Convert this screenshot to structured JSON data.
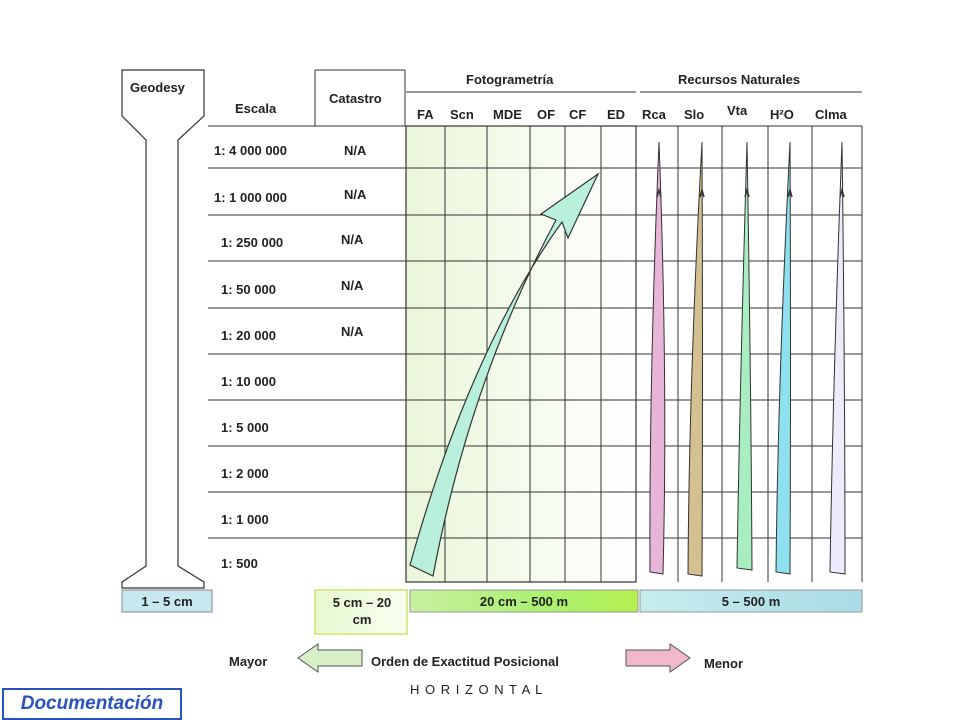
{
  "columns": {
    "geodesy": "Geodesy",
    "escala": "Escala",
    "catastro": "Catastro",
    "fotogrametria": "Fotogrametría",
    "recursos": "Recursos Naturales"
  },
  "foto_cols": [
    "FA",
    "Scn",
    "MDE",
    "OF",
    "CF",
    "ED"
  ],
  "rec_cols": [
    "Rca",
    "Slo",
    "Vta",
    "H²O",
    "Clma"
  ],
  "scales": [
    "1: 4 000 000",
    "1: 1 000 000",
    "1: 250 000",
    "1: 50 000",
    "1: 20 000",
    "1: 10 000",
    "1: 5 000",
    "1: 2 000",
    "1: 1 000",
    "1: 500"
  ],
  "catastro_values": [
    "N/A",
    "N/A",
    "N/A",
    "N/A",
    "N/A"
  ],
  "bottom": {
    "geodesy": "1 – 5 cm",
    "catastro": "5 cm – 20 cm",
    "foto": "20 cm – 500 m",
    "recursos": "5 – 500 m"
  },
  "legend": {
    "mayor": "Mayor",
    "orden": "Orden de Exactitud Posicional",
    "menor": "Menor",
    "horizontal": "H O R I Z O N T A L"
  },
  "badge": "Documentación",
  "colors": {
    "foto_arrow": "#b8f0dc",
    "rca": "#e8b4d8",
    "slo": "#d4c090",
    "vta": "#a8eec0",
    "h2o": "#8ee0ee",
    "clma": "#ececfc",
    "badge": "#2a52be"
  }
}
